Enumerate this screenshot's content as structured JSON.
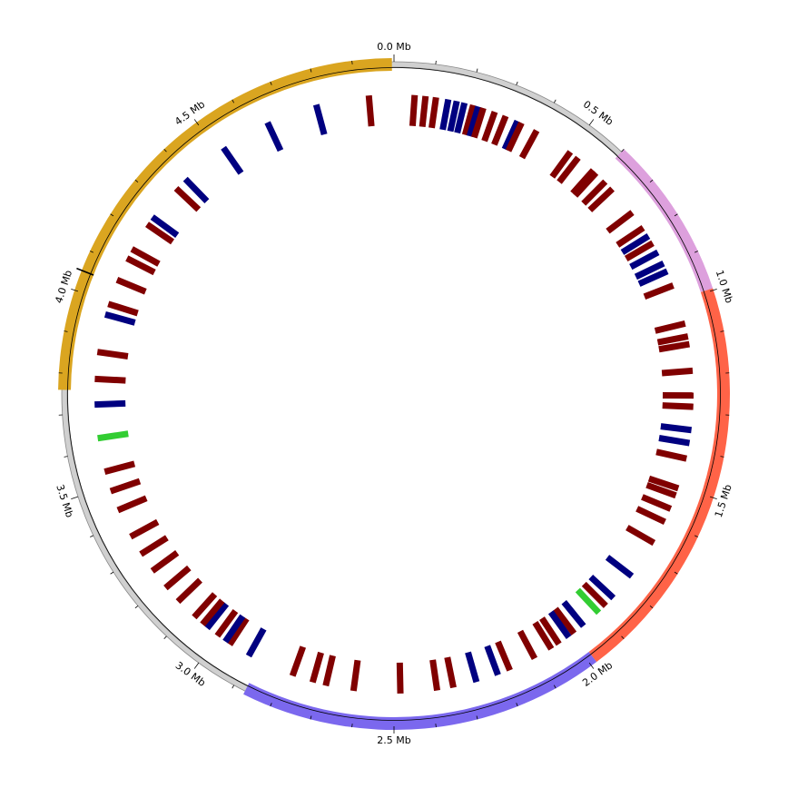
{
  "chart_data": {
    "type": "circular-genome-map",
    "genome_length_mb": 5.0,
    "axis": {
      "unit": "Mb",
      "major_ticks": [
        {
          "value": 0.0,
          "label": "0.0 Mb"
        },
        {
          "value": 0.5,
          "label": "0.5 Mb"
        },
        {
          "value": 1.0,
          "label": "1.0 Mb"
        },
        {
          "value": 1.5,
          "label": "1.5 Mb"
        },
        {
          "value": 2.0,
          "label": "2.0 Mb"
        },
        {
          "value": 2.5,
          "label": "2.5 Mb"
        },
        {
          "value": 3.0,
          "label": "3.0 Mb"
        },
        {
          "value": 3.5,
          "label": "3.5 Mb"
        },
        {
          "value": 4.0,
          "label": "4.0 Mb"
        },
        {
          "value": 4.5,
          "label": "4.5 Mb"
        }
      ],
      "minor_tick_step_mb": 0.1,
      "special_marker_mb": 4.05
    },
    "regions": [
      {
        "start": 0.6,
        "end": 0.995,
        "color": "#DDA0DD"
      },
      {
        "start": 0.995,
        "end": 1.985,
        "color": "#FF6347"
      },
      {
        "start": 1.985,
        "end": 2.87,
        "color": "#7B68EE"
      },
      {
        "start": 3.76,
        "end": 4.995,
        "color": "#DAA520"
      }
    ],
    "feature_colors": {
      "r": "#800000",
      "b": "#000080",
      "g": "#32CD32"
    },
    "features": [
      {
        "pos": 0.055,
        "color": "r"
      },
      {
        "pos": 0.084,
        "color": "r"
      },
      {
        "pos": 0.112,
        "color": "r"
      },
      {
        "pos": 0.145,
        "color": "b"
      },
      {
        "pos": 0.168,
        "color": "b"
      },
      {
        "pos": 0.189,
        "color": "b"
      },
      {
        "pos": 0.213,
        "color": "r"
      },
      {
        "pos": 0.227,
        "color": "b"
      },
      {
        "pos": 0.241,
        "color": "r"
      },
      {
        "pos": 0.273,
        "color": "r"
      },
      {
        "pos": 0.304,
        "color": "r"
      },
      {
        "pos": 0.338,
        "color": "b"
      },
      {
        "pos": 0.35,
        "color": "r"
      },
      {
        "pos": 0.395,
        "color": "r"
      },
      {
        "pos": 0.501,
        "color": "r"
      },
      {
        "pos": 0.527,
        "color": "r"
      },
      {
        "pos": 0.579,
        "color": "r"
      },
      {
        "pos": 0.589,
        "color": "r"
      },
      {
        "pos": 0.623,
        "color": "r"
      },
      {
        "pos": 0.65,
        "color": "r"
      },
      {
        "pos": 0.732,
        "color": "r"
      },
      {
        "pos": 0.782,
        "color": "r"
      },
      {
        "pos": 0.808,
        "color": "b"
      },
      {
        "pos": 0.83,
        "color": "r"
      },
      {
        "pos": 0.858,
        "color": "b"
      },
      {
        "pos": 0.891,
        "color": "b"
      },
      {
        "pos": 0.914,
        "color": "b"
      },
      {
        "pos": 0.955,
        "color": "r"
      },
      {
        "pos": 1.061,
        "color": "r"
      },
      {
        "pos": 1.096,
        "color": "r"
      },
      {
        "pos": 1.117,
        "color": "r"
      },
      {
        "pos": 1.188,
        "color": "r"
      },
      {
        "pos": 1.254,
        "color": "r"
      },
      {
        "pos": 1.284,
        "color": "r"
      },
      {
        "pos": 1.346,
        "color": "b"
      },
      {
        "pos": 1.381,
        "color": "b"
      },
      {
        "pos": 1.423,
        "color": "r"
      },
      {
        "pos": 1.505,
        "color": "r"
      },
      {
        "pos": 1.525,
        "color": "r"
      },
      {
        "pos": 1.563,
        "color": "r"
      },
      {
        "pos": 1.601,
        "color": "r"
      },
      {
        "pos": 1.664,
        "color": "r"
      },
      {
        "pos": 1.77,
        "color": "b"
      },
      {
        "pos": 1.846,
        "color": "b"
      },
      {
        "pos": 1.875,
        "color": "r"
      },
      {
        "pos": 1.901,
        "color": "g"
      },
      {
        "pos": 1.955,
        "color": "b"
      },
      {
        "pos": 1.987,
        "color": "r"
      },
      {
        "pos": 2.004,
        "color": "b"
      },
      {
        "pos": 2.036,
        "color": "r"
      },
      {
        "pos": 2.06,
        "color": "r"
      },
      {
        "pos": 2.111,
        "color": "r"
      },
      {
        "pos": 2.184,
        "color": "r"
      },
      {
        "pos": 2.218,
        "color": "b"
      },
      {
        "pos": 2.278,
        "color": "b"
      },
      {
        "pos": 2.341,
        "color": "r"
      },
      {
        "pos": 2.385,
        "color": "r"
      },
      {
        "pos": 2.483,
        "color": "r"
      },
      {
        "pos": 2.608,
        "color": "r"
      },
      {
        "pos": 2.683,
        "color": "r"
      },
      {
        "pos": 2.719,
        "color": "r"
      },
      {
        "pos": 2.775,
        "color": "r"
      },
      {
        "pos": 2.903,
        "color": "b"
      },
      {
        "pos": 2.962,
        "color": "r"
      },
      {
        "pos": 2.976,
        "color": "b"
      },
      {
        "pos": 3.002,
        "color": "r"
      },
      {
        "pos": 3.036,
        "color": "b"
      },
      {
        "pos": 3.052,
        "color": "r"
      },
      {
        "pos": 3.081,
        "color": "r"
      },
      {
        "pos": 3.141,
        "color": "r"
      },
      {
        "pos": 3.19,
        "color": "r"
      },
      {
        "pos": 3.247,
        "color": "r"
      },
      {
        "pos": 3.301,
        "color": "r"
      },
      {
        "pos": 3.355,
        "color": "r"
      },
      {
        "pos": 3.433,
        "color": "r"
      },
      {
        "pos": 3.487,
        "color": "r"
      },
      {
        "pos": 3.541,
        "color": "r"
      },
      {
        "pos": 3.632,
        "color": "g"
      },
      {
        "pos": 3.722,
        "color": "b"
      },
      {
        "pos": 3.79,
        "color": "r"
      },
      {
        "pos": 3.862,
        "color": "r"
      },
      {
        "pos": 3.964,
        "color": "b"
      },
      {
        "pos": 3.993,
        "color": "r"
      },
      {
        "pos": 4.061,
        "color": "r"
      },
      {
        "pos": 4.124,
        "color": "r"
      },
      {
        "pos": 4.152,
        "color": "r"
      },
      {
        "pos": 4.229,
        "color": "r"
      },
      {
        "pos": 4.253,
        "color": "b"
      },
      {
        "pos": 4.352,
        "color": "r"
      },
      {
        "pos": 4.387,
        "color": "b"
      },
      {
        "pos": 4.518,
        "color": "b"
      },
      {
        "pos": 4.653,
        "color": "b"
      },
      {
        "pos": 4.791,
        "color": "b"
      },
      {
        "pos": 4.933,
        "color": "r"
      }
    ]
  }
}
